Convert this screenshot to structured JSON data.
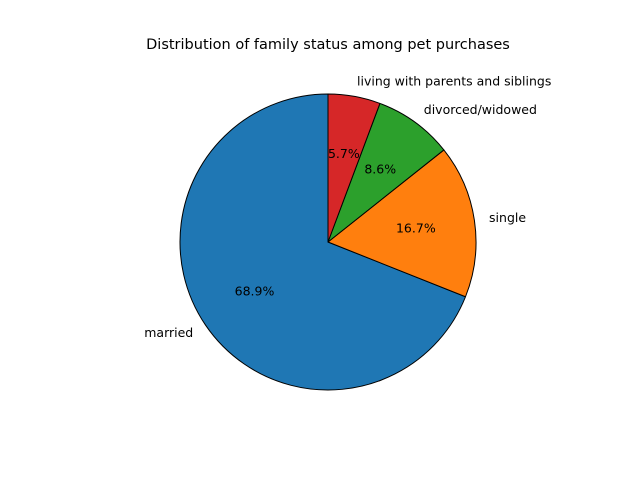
{
  "chart_data": {
    "type": "pie",
    "title": "Distribution of family status among pet purchases",
    "slices": [
      {
        "label": "married",
        "value": 68.9,
        "pct_label": "68.9%",
        "color": "#1f77b4"
      },
      {
        "label": "single",
        "value": 16.7,
        "pct_label": "16.7%",
        "color": "#ff7f0e"
      },
      {
        "label": "divorced/widowed",
        "value": 8.6,
        "pct_label": "8.6%",
        "color": "#2ca02c"
      },
      {
        "label": "living with parents and siblings",
        "value": 5.7,
        "pct_label": "5.7%",
        "color": "#d62728"
      }
    ],
    "start_angle_deg": 90,
    "direction": "counterclockwise",
    "edge_color": "#000000",
    "legend": "none"
  }
}
